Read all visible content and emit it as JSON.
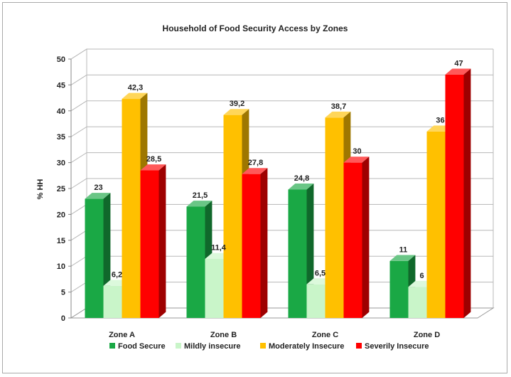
{
  "chart_data": {
    "type": "bar",
    "title": "Household of Food Security Access by Zones",
    "ylabel": "% HH",
    "xlabel": "",
    "ylim": [
      0,
      50
    ],
    "yticks": [
      "0",
      "5",
      "10",
      "15",
      "20",
      "25",
      "30",
      "35",
      "40",
      "45",
      "50"
    ],
    "categories": [
      "Zone A",
      "Zone B",
      "Zone C",
      "Zone D"
    ],
    "series": [
      {
        "name": "Food Secure",
        "values": [
          23,
          21.5,
          24.8,
          11
        ],
        "labels": [
          "23",
          "21,5",
          "24,8",
          "11"
        ],
        "color": "#1aa845"
      },
      {
        "name": "Mildly insecure",
        "values": [
          6.2,
          11.4,
          6.5,
          6
        ],
        "labels": [
          "6,2",
          "11,4",
          "6,5",
          "6"
        ],
        "color": "#c9f5c9"
      },
      {
        "name": "Moderately Insecure",
        "values": [
          42.3,
          39.2,
          38.7,
          36
        ],
        "labels": [
          "42,3",
          "39,2",
          "38,7",
          "36"
        ],
        "color": "#ffc000"
      },
      {
        "name": "Severily Insecure",
        "values": [
          28.5,
          27.8,
          30,
          47
        ],
        "labels": [
          "28,5",
          "27,8",
          "30",
          "47"
        ],
        "color": "#ff0000"
      }
    ],
    "legend_position": "bottom",
    "grid": true,
    "style": "3d-bar"
  }
}
